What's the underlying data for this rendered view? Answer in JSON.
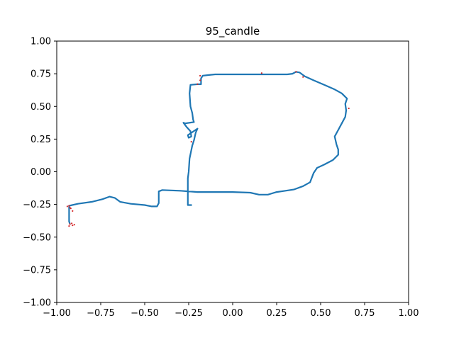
{
  "chart_data": {
    "type": "scatter",
    "title": "95_candle",
    "xlabel": "",
    "ylabel": "",
    "xlim": [
      -1.0,
      1.0
    ],
    "ylim": [
      -1.0,
      1.0
    ],
    "x_ticks": [
      -1.0,
      -0.75,
      -0.5,
      -0.25,
      0.0,
      0.25,
      0.5,
      0.75,
      1.0
    ],
    "x_tick_labels": [
      "−1.00",
      "−0.75",
      "−0.50",
      "−0.25",
      "0.00",
      "0.25",
      "0.50",
      "0.75",
      "1.00"
    ],
    "y_ticks": [
      1.0,
      0.75,
      0.5,
      0.25,
      0.0,
      -0.25,
      -0.5,
      -0.75,
      -1.0
    ],
    "y_tick_labels": [
      "1.00",
      "0.75",
      "0.50",
      "0.25",
      "0.00",
      "−0.25",
      "−0.50",
      "−0.75",
      "−1.00"
    ],
    "grid": false,
    "colors": {
      "trajectory": "#1f77b4",
      "points": "#d62728"
    },
    "series": [
      {
        "style": "line",
        "color": "#1f77b4",
        "points": [
          [
            -0.93,
            -0.26
          ],
          [
            -0.88,
            -0.245
          ],
          [
            -0.8,
            -0.23
          ],
          [
            -0.74,
            -0.21
          ],
          [
            -0.7,
            -0.19
          ],
          [
            -0.67,
            -0.2
          ],
          [
            -0.64,
            -0.23
          ],
          [
            -0.58,
            -0.245
          ],
          [
            -0.5,
            -0.255
          ],
          [
            -0.46,
            -0.265
          ],
          [
            -0.43,
            -0.265
          ],
          [
            -0.42,
            -0.24
          ],
          [
            -0.42,
            -0.2
          ],
          [
            -0.42,
            -0.15
          ],
          [
            -0.4,
            -0.14
          ],
          [
            -0.3,
            -0.145
          ],
          [
            -0.2,
            -0.155
          ],
          [
            -0.1,
            -0.155
          ],
          [
            0.0,
            -0.155
          ],
          [
            0.1,
            -0.16
          ],
          [
            0.15,
            -0.175
          ],
          [
            0.2,
            -0.175
          ],
          [
            0.25,
            -0.155
          ],
          [
            0.3,
            -0.145
          ],
          [
            0.35,
            -0.135
          ],
          [
            0.4,
            -0.11
          ],
          [
            0.44,
            -0.08
          ],
          [
            0.46,
            -0.01
          ],
          [
            0.48,
            0.03
          ],
          [
            0.52,
            0.055
          ],
          [
            0.57,
            0.09
          ],
          [
            0.6,
            0.13
          ],
          [
            0.6,
            0.17
          ],
          [
            0.59,
            0.21
          ],
          [
            0.58,
            0.27
          ],
          [
            0.6,
            0.32
          ],
          [
            0.62,
            0.37
          ],
          [
            0.64,
            0.42
          ],
          [
            0.645,
            0.47
          ],
          [
            0.64,
            0.52
          ],
          [
            0.65,
            0.56
          ],
          [
            0.62,
            0.6
          ],
          [
            0.58,
            0.63
          ],
          [
            0.52,
            0.665
          ],
          [
            0.46,
            0.7
          ],
          [
            0.41,
            0.73
          ],
          [
            0.38,
            0.76
          ],
          [
            0.36,
            0.765
          ],
          [
            0.34,
            0.75
          ],
          [
            0.31,
            0.745
          ],
          [
            0.26,
            0.745
          ],
          [
            0.2,
            0.745
          ],
          [
            0.1,
            0.745
          ],
          [
            0.0,
            0.745
          ],
          [
            -0.1,
            0.745
          ],
          [
            -0.14,
            0.74
          ],
          [
            -0.17,
            0.735
          ],
          [
            -0.18,
            0.715
          ],
          [
            -0.18,
            0.67
          ],
          [
            -0.2,
            0.67
          ],
          [
            -0.24,
            0.665
          ],
          [
            -0.245,
            0.6
          ],
          [
            -0.24,
            0.5
          ],
          [
            -0.23,
            0.45
          ],
          [
            -0.225,
            0.4
          ],
          [
            -0.22,
            0.38
          ],
          [
            -0.27,
            0.37
          ],
          [
            -0.28,
            0.375
          ],
          [
            -0.26,
            0.34
          ],
          [
            -0.24,
            0.31
          ],
          [
            -0.235,
            0.27
          ],
          [
            -0.25,
            0.26
          ],
          [
            -0.255,
            0.28
          ],
          [
            -0.2,
            0.33
          ],
          [
            -0.21,
            0.3
          ],
          [
            -0.22,
            0.24
          ],
          [
            -0.23,
            0.2
          ],
          [
            -0.245,
            0.1
          ],
          [
            -0.25,
            0.0
          ],
          [
            -0.255,
            -0.05
          ],
          [
            -0.255,
            -0.15
          ],
          [
            -0.255,
            -0.2
          ],
          [
            -0.255,
            -0.255
          ],
          [
            -0.235,
            -0.255
          ]
        ]
      },
      {
        "style": "line",
        "color": "#1f77b4",
        "points": [
          [
            -0.93,
            -0.26
          ],
          [
            -0.93,
            -0.3
          ],
          [
            -0.93,
            -0.38
          ],
          [
            -0.925,
            -0.4
          ]
        ]
      },
      {
        "style": "markers",
        "color": "#d62728",
        "points": [
          [
            -0.93,
            -0.26
          ],
          [
            -0.92,
            -0.28
          ],
          [
            -0.91,
            -0.3
          ],
          [
            -0.925,
            -0.4
          ],
          [
            -0.91,
            -0.41
          ],
          [
            -0.9,
            -0.405
          ],
          [
            -0.93,
            -0.415
          ],
          [
            -0.915,
            -0.395
          ],
          [
            -0.185,
            0.735
          ],
          [
            -0.185,
            0.7
          ],
          [
            -0.2,
            0.67
          ],
          [
            -0.235,
            0.23
          ],
          [
            0.165,
            0.755
          ],
          [
            0.66,
            0.485
          ],
          [
            0.36,
            0.765
          ],
          [
            0.4,
            0.725
          ],
          [
            -0.94,
            -0.265
          ],
          [
            -0.925,
            -0.275
          ]
        ]
      }
    ]
  }
}
